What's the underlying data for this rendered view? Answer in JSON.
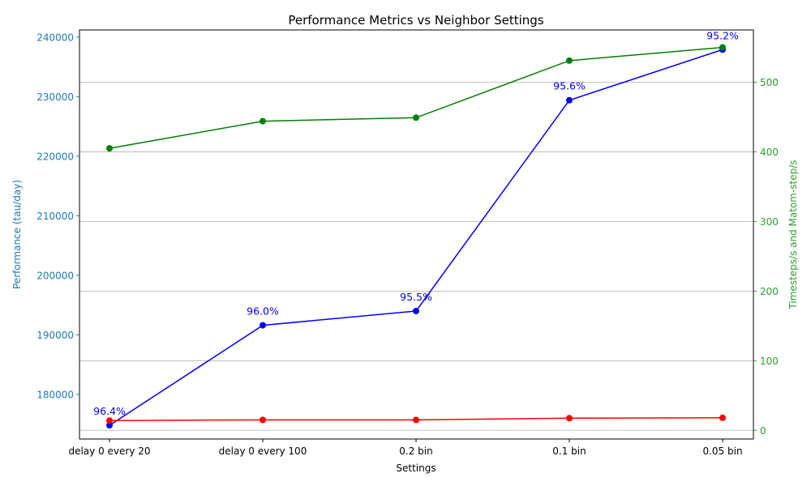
{
  "chart_data": {
    "type": "line",
    "title": "Performance Metrics vs Neighbor Settings",
    "xlabel": "Settings",
    "ylabel_left": "Performance (tau/day)",
    "ylabel_right": "Timesteps/s and Matom-step/s",
    "categories": [
      "delay 0 every 20",
      "delay 0 every 100",
      "0.2 bin",
      "0.1 bin",
      "0.05 bin"
    ],
    "left_axis": {
      "range": [
        172500,
        241200
      ],
      "ticks": [
        180000,
        190000,
        200000,
        210000,
        220000,
        230000,
        240000
      ],
      "tick_labels": [
        "180000",
        "190000",
        "200000",
        "210000",
        "220000",
        "230000",
        "240000"
      ]
    },
    "right_axis": {
      "range": [
        -12.5,
        575
      ],
      "ticks": [
        0,
        100,
        200,
        300,
        400,
        500
      ],
      "tick_labels": [
        "0",
        "100",
        "200",
        "300",
        "400",
        "500"
      ],
      "grid": true
    },
    "series": [
      {
        "axis": "left",
        "color": "#0000ff",
        "values": [
          174800,
          191600,
          194000,
          229400,
          237900
        ],
        "data_labels": [
          "96.4%",
          "96.0%",
          "95.5%",
          "95.6%",
          "95.2%"
        ]
      },
      {
        "axis": "right",
        "color": "#008000",
        "values": [
          405,
          444,
          449,
          531,
          550
        ]
      },
      {
        "axis": "right",
        "color": "#ff0000",
        "values": [
          14,
          15,
          15,
          17.5,
          18
        ]
      }
    ],
    "colors": {
      "left_axis": "#1f77b4",
      "right_axis": "#2ca02c",
      "grid": "#b0b0b0"
    }
  }
}
